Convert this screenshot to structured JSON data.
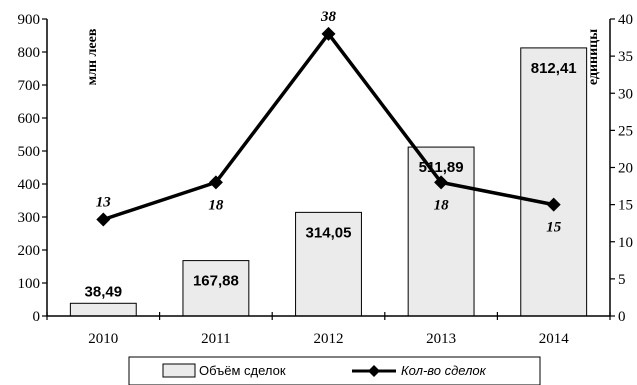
{
  "chart_data": {
    "type": "bar+line",
    "categories": [
      "2010",
      "2011",
      "2012",
      "2013",
      "2014"
    ],
    "series": [
      {
        "name": "Объём сделок",
        "type": "bar",
        "axis": "left",
        "values": [
          38.49,
          167.88,
          314.05,
          511.89,
          812.41
        ],
        "labels": [
          "38,49",
          "167,88",
          "314,05",
          "511,89",
          "812,41"
        ],
        "color": "#ebebeb"
      },
      {
        "name": "Кол-во сделок",
        "type": "line",
        "axis": "right",
        "values": [
          13,
          18,
          38,
          18,
          15
        ],
        "labels": [
          "13",
          "18",
          "38",
          "18",
          "15"
        ],
        "color": "#000000"
      }
    ],
    "y_left": {
      "label": "млн леев",
      "range": [
        0,
        900
      ],
      "ticks": [
        "0",
        "100",
        "200",
        "300",
        "400",
        "500",
        "600",
        "700",
        "800",
        "900"
      ]
    },
    "y_right": {
      "label": "единицы",
      "range": [
        0,
        40
      ],
      "ticks": [
        "0",
        "5",
        "10",
        "15",
        "20",
        "25",
        "30",
        "35",
        "40"
      ]
    },
    "legend_position": "bottom",
    "grid": false
  }
}
